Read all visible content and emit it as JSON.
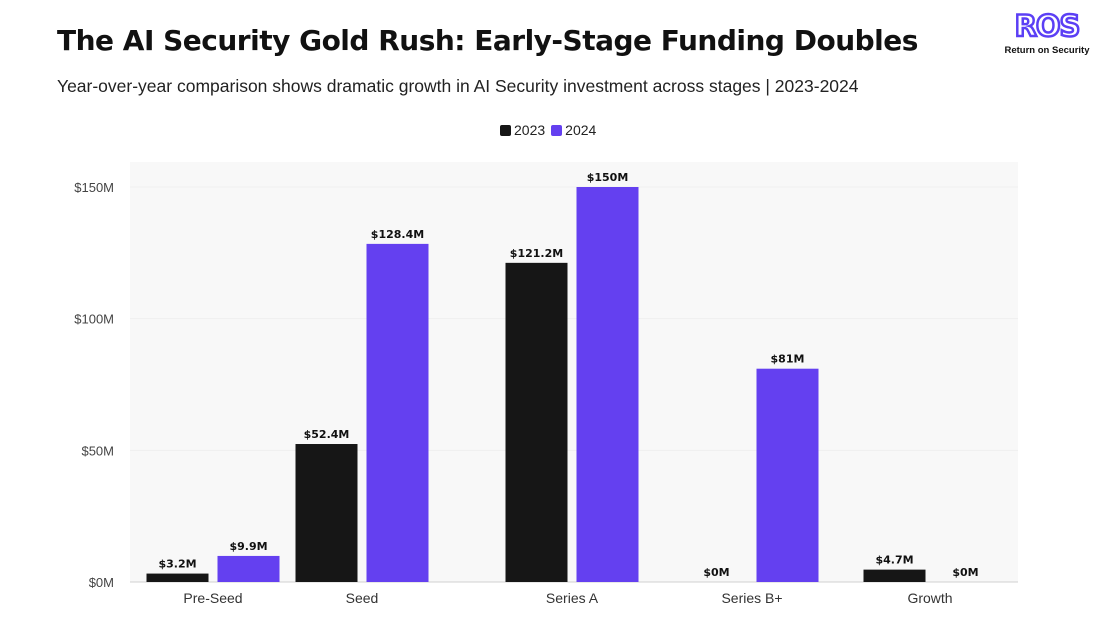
{
  "header": {
    "title": "The AI Security Gold Rush: Early-Stage Funding Doubles",
    "subtitle": "Year-over-year comparison shows dramatic growth in AI Security investment across stages | 2023-2024"
  },
  "logo": {
    "mark": "ROS",
    "tagline": "Return on Security",
    "color": "#5b3ff5"
  },
  "chart_data": {
    "type": "bar",
    "title": "The AI Security Gold Rush: Early-Stage Funding Doubles",
    "subtitle": "Year-over-year comparison shows dramatic growth in AI Security investment across stages | 2023-2024",
    "categories": [
      "Pre-Seed",
      "Seed",
      "Series A",
      "Series B+",
      "Growth"
    ],
    "series": [
      {
        "name": "2023",
        "color": "#161616",
        "values": [
          3.2,
          52.4,
          121.2,
          0,
          4.7
        ],
        "labels": [
          "$3.2M",
          "$52.4M",
          "$121.2M",
          "$0M",
          "$4.7M"
        ]
      },
      {
        "name": "2024",
        "color": "#6440f0",
        "values": [
          9.9,
          128.4,
          150,
          81,
          0
        ],
        "labels": [
          "$9.9M",
          "$128.4M",
          "$150M",
          "$81M",
          "$0M"
        ]
      }
    ],
    "yticks": [
      0,
      50,
      100,
      150
    ],
    "ytick_labels": [
      "$0M",
      "$50M",
      "$100M",
      "$150M"
    ],
    "ylim": [
      0,
      150
    ],
    "legend": "top-center",
    "grid": false
  }
}
